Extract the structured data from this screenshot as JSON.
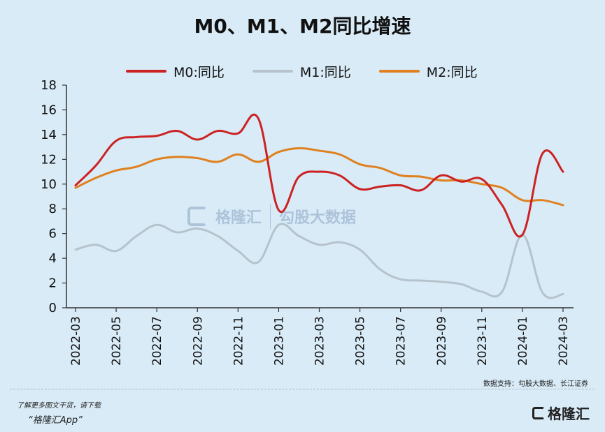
{
  "header": {
    "title": "M0、M1、M2同比增速"
  },
  "chart_data": {
    "type": "line",
    "title": "M0、M1、M2同比增速",
    "xlabel": "",
    "ylabel": "",
    "ylim": [
      0,
      18
    ],
    "yticks": [
      "0",
      "2",
      "4",
      "6",
      "8",
      "10",
      "12",
      "14",
      "16",
      "18"
    ],
    "x": [
      "2022-03",
      "2022-04",
      "2022-05",
      "2022-06",
      "2022-07",
      "2022-08",
      "2022-09",
      "2022-10",
      "2022-11",
      "2022-12",
      "2023-01",
      "2023-02",
      "2023-03",
      "2023-04",
      "2023-05",
      "2023-06",
      "2023-07",
      "2023-08",
      "2023-09",
      "2023-10",
      "2023-11",
      "2023-12",
      "2024-01",
      "2024-02",
      "2024-03"
    ],
    "xtick_labels": [
      "2022-03",
      "2022-05",
      "2022-07",
      "2022-09",
      "2022-11",
      "2023-01",
      "2023-03",
      "2023-05",
      "2023-07",
      "2023-09",
      "2023-11",
      "2024-01",
      "2024-03"
    ],
    "grid": false,
    "legend_position": "top",
    "series": [
      {
        "name": "M0:同比",
        "color": "#cc2222",
        "values": [
          9.9,
          11.5,
          13.5,
          13.8,
          13.9,
          14.3,
          13.6,
          14.3,
          14.1,
          15.3,
          7.9,
          10.6,
          11.0,
          10.7,
          9.6,
          9.8,
          9.9,
          9.5,
          10.7,
          10.2,
          10.4,
          8.3,
          5.9,
          12.5,
          11.0
        ]
      },
      {
        "name": "M1:同比",
        "color": "#b6c3cc",
        "values": [
          4.7,
          5.1,
          4.6,
          5.8,
          6.7,
          6.1,
          6.4,
          5.8,
          4.6,
          3.7,
          6.7,
          5.8,
          5.1,
          5.3,
          4.7,
          3.1,
          2.3,
          2.2,
          2.1,
          1.9,
          1.3,
          1.3,
          5.9,
          1.2,
          1.1
        ]
      },
      {
        "name": "M2:同比",
        "color": "#e0801e",
        "values": [
          9.7,
          10.5,
          11.1,
          11.4,
          12.0,
          12.2,
          12.1,
          11.8,
          12.4,
          11.8,
          12.6,
          12.9,
          12.7,
          12.4,
          11.6,
          11.3,
          10.7,
          10.6,
          10.3,
          10.3,
          10.0,
          9.7,
          8.7,
          8.7,
          8.3
        ]
      }
    ]
  },
  "source": "数据支持：勾股大数据、长江证券",
  "footer": {
    "line1": "了解更多图文干货，请下载",
    "line2": "“格隆汇App”",
    "logo_text": "格隆汇"
  },
  "watermark": {
    "left": "格隆汇",
    "right": "勾股大数据"
  }
}
